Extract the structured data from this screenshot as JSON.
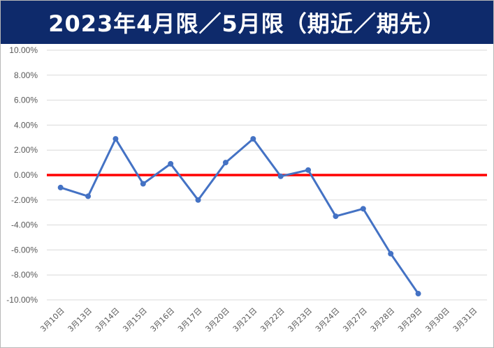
{
  "title": "2023年4月限／5月限（期近／期先）",
  "colors": {
    "title_bg": "#0e2a6b",
    "series": "#4472c4",
    "zero_line": "#ff0000",
    "grid": "#d9d9d9"
  },
  "chart_data": {
    "type": "line",
    "title": "2023年4月限／5月限（期近／期先）",
    "categories": [
      "3月10日",
      "3月13日",
      "3月14日",
      "3月15日",
      "3月16日",
      "3月17日",
      "3月20日",
      "3月21日",
      "3月22日",
      "3月23日",
      "3月24日",
      "3月27日",
      "3月28日",
      "3月29日",
      "3月30日",
      "3月31日"
    ],
    "series": [
      {
        "values": [
          -1.0,
          -1.7,
          2.9,
          -0.7,
          0.9,
          -2.0,
          1.0,
          2.9,
          -0.1,
          0.4,
          -3.3,
          -2.7,
          -6.3,
          -9.5,
          null,
          null
        ]
      }
    ],
    "ylim": [
      -10,
      10
    ],
    "yticks": [
      "10.00%",
      "8.00%",
      "6.00%",
      "4.00%",
      "2.00%",
      "0.00%",
      "-2.00%",
      "-4.00%",
      "-6.00%",
      "-8.00%",
      "-10.00%"
    ],
    "ytick_values": [
      10,
      8,
      6,
      4,
      2,
      0,
      -2,
      -4,
      -6,
      -8,
      -10
    ],
    "reference_line": 0,
    "grid": true,
    "legend": "none"
  }
}
